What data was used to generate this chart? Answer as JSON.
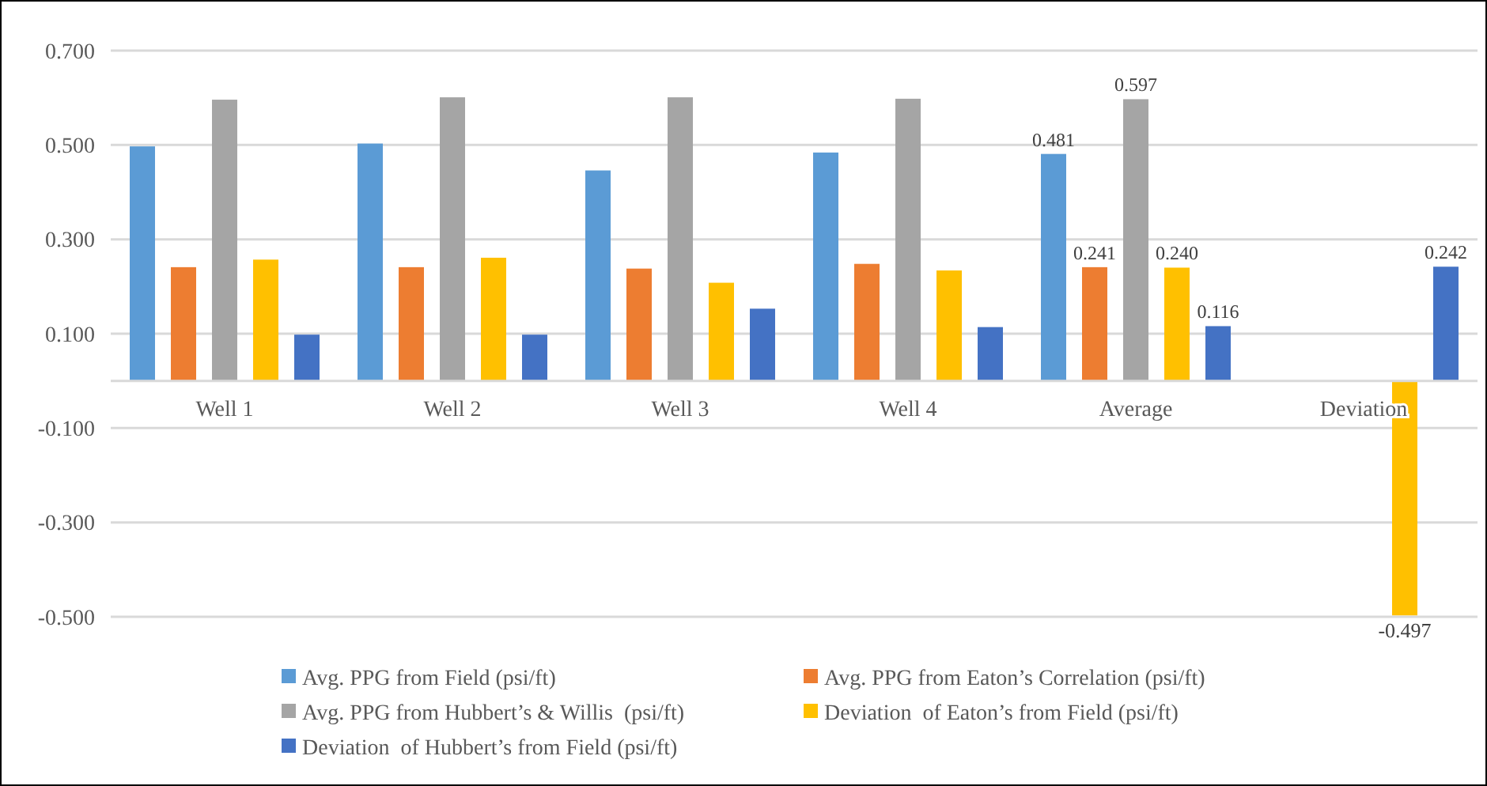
{
  "chart_data": {
    "type": "bar",
    "categories": [
      "Well 1",
      "Well 2",
      "Well 3",
      "Well 4",
      "Average",
      "Deviation"
    ],
    "series": [
      {
        "name": "Avg. PPG from Field (psi/ft)",
        "color": "#5b9bd5",
        "values": [
          0.497,
          0.503,
          0.446,
          0.484,
          0.481,
          null
        ],
        "value_labels": [
          null,
          null,
          null,
          null,
          "0.481",
          null
        ]
      },
      {
        "name": "Avg. PPG from Eaton’s Correlation (psi/ft)",
        "color": "#ed7d31",
        "values": [
          0.241,
          0.241,
          0.238,
          0.248,
          0.241,
          null
        ],
        "value_labels": [
          null,
          null,
          null,
          null,
          "0.241",
          null
        ]
      },
      {
        "name": "Avg. PPG from Hubbert’s & Willis  (psi/ft)",
        "color": "#a5a5a5",
        "values": [
          0.596,
          0.601,
          0.601,
          0.598,
          0.597,
          null
        ],
        "value_labels": [
          null,
          null,
          null,
          null,
          "0.597",
          null
        ]
      },
      {
        "name": "Deviation  of Eaton’s from Field (psi/ft)",
        "color": "#ffc000",
        "values": [
          0.257,
          0.261,
          0.208,
          0.234,
          0.24,
          -0.497
        ],
        "value_labels": [
          null,
          null,
          null,
          null,
          "0.240",
          "-0.497"
        ]
      },
      {
        "name": "Deviation  of Hubbert’s from Field (psi/ft)",
        "color": "#4472c4",
        "values": [
          0.098,
          0.098,
          0.153,
          0.114,
          0.116,
          0.242
        ],
        "value_labels": [
          null,
          null,
          null,
          null,
          "0.116",
          "0.242"
        ]
      }
    ],
    "ylim": [
      -0.5,
      0.7
    ],
    "yticks": [
      {
        "value": 0.7,
        "label": "0.700"
      },
      {
        "value": 0.5,
        "label": "0.500"
      },
      {
        "value": 0.3,
        "label": "0.300"
      },
      {
        "value": 0.1,
        "label": "0.100"
      },
      {
        "value": -0.1,
        "label": "-0.100"
      },
      {
        "value": -0.3,
        "label": "-0.300"
      },
      {
        "value": -0.5,
        "label": "-0.500"
      }
    ],
    "grid": "y",
    "legend": "bottom"
  }
}
